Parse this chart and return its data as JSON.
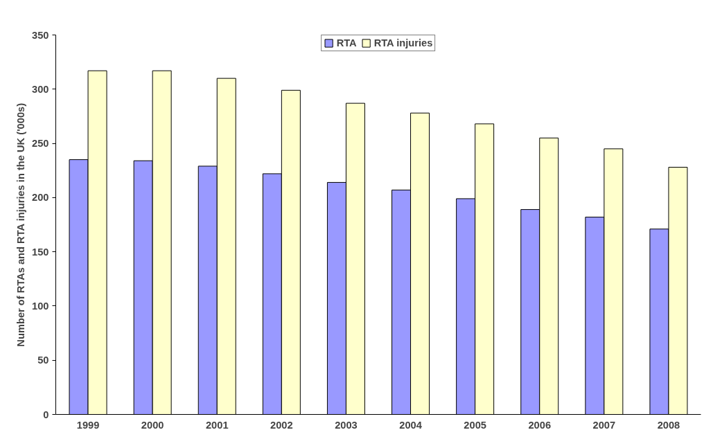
{
  "chart_data": {
    "type": "bar",
    "ylabel": "Number of RTAs and RTA injuries in the UK ('000s)",
    "categories": [
      "1999",
      "2000",
      "2001",
      "2002",
      "2003",
      "2004",
      "2005",
      "2006",
      "2007",
      "2008"
    ],
    "series": [
      {
        "name": "RTA",
        "color": "#9999ff",
        "values": [
          235,
          234,
          229,
          222,
          214,
          207,
          199,
          189,
          182,
          171
        ]
      },
      {
        "name": "RTA injuries",
        "color": "#ffffcc",
        "values": [
          317,
          317,
          310,
          299,
          287,
          278,
          268,
          255,
          245,
          228
        ]
      }
    ],
    "ylim": [
      0,
      350
    ],
    "yticks": [
      0,
      50,
      100,
      150,
      200,
      250,
      300,
      350
    ],
    "grid": false,
    "legend": "top"
  }
}
